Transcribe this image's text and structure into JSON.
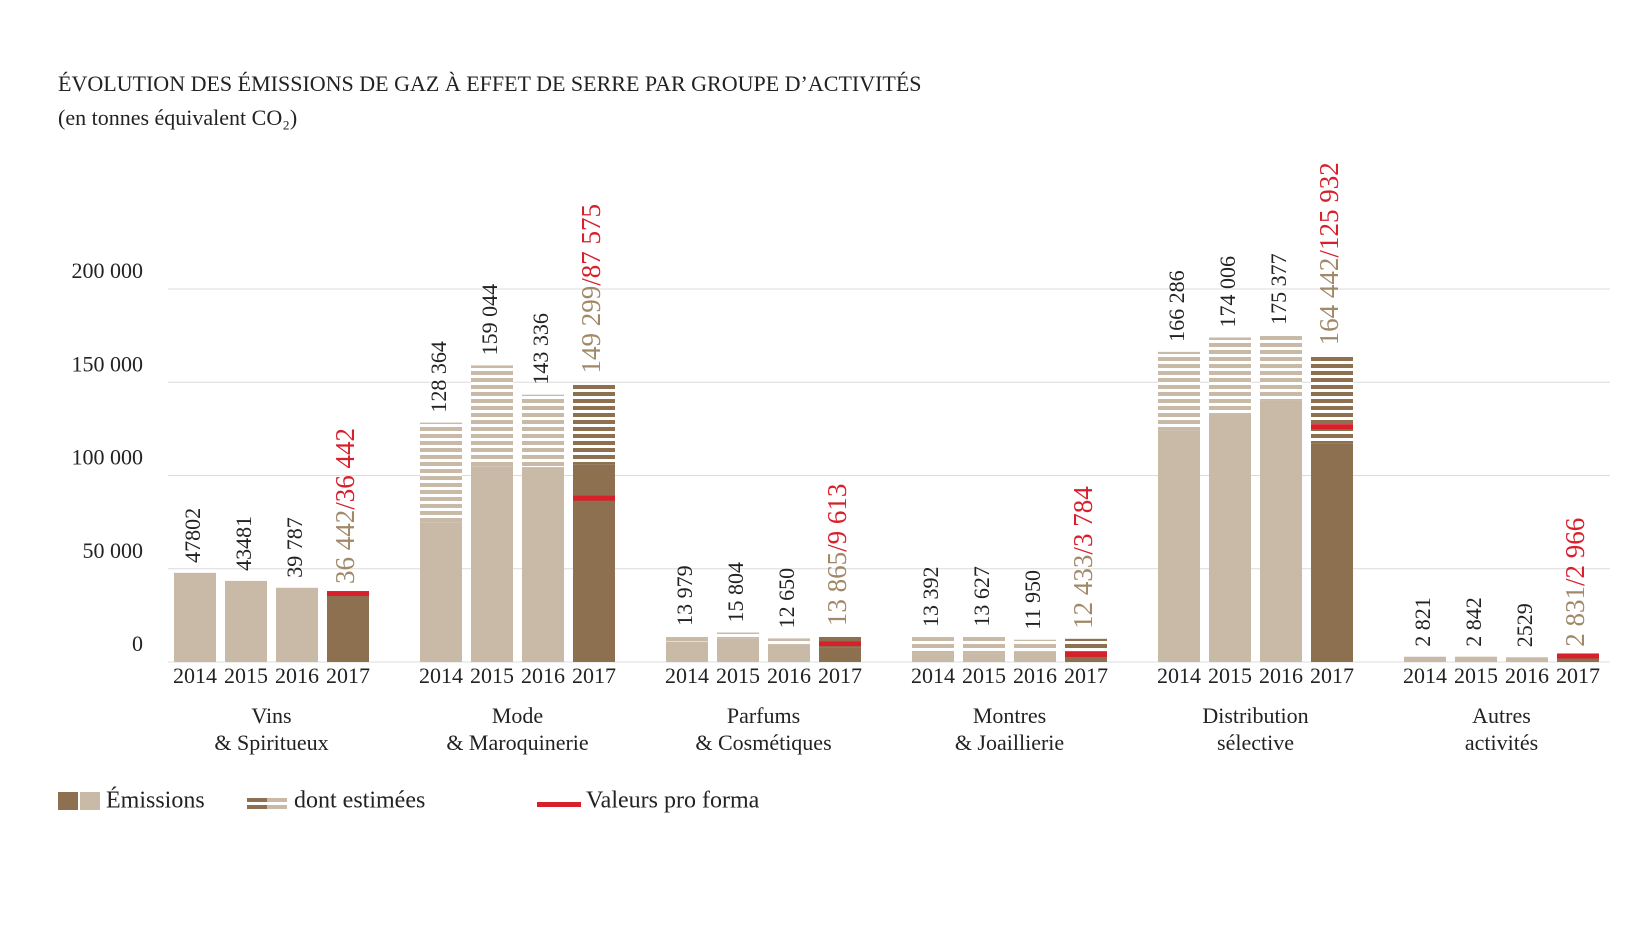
{
  "chart_data": {
    "type": "grouped_bar",
    "title": "ÉVOLUTION DES ÉMISSIONS DE GAZ À EFFET DE SERRE PAR GROUPE D’ACTIVITÉS",
    "subtitle": "(en tonnes équivalent CO₂)",
    "years": [
      "2014",
      "2015",
      "2016",
      "2017"
    ],
    "ylim": [
      0,
      200000
    ],
    "yticks": [
      0,
      {
        "value": 50000,
        "label": "50 000"
      },
      {
        "value": 100000,
        "label": "100 000"
      },
      {
        "value": 150000,
        "label": "150 000"
      },
      {
        "value": 200000,
        "label": "200 000"
      }
    ],
    "grid": true,
    "colors": {
      "past": "#c9b9a7",
      "current": "#8c7050",
      "current_label": "#a08868",
      "pro_forma": "#d7202b"
    },
    "label_separator": "/",
    "legend": [
      "Émissions",
      "dont estimées",
      "Valeurs pro forma"
    ],
    "groups": [
      {
        "label": [
          "Vins",
          "& Spiritueux"
        ],
        "values": [
          47802,
          43481,
          39787,
          36442
        ],
        "value_labels": [
          "47802",
          "43481",
          "39 787",
          "36 442"
        ],
        "measured": [
          47802,
          43481,
          39787,
          36442
        ],
        "pro_forma": 36442,
        "pro_forma_label": "36 442"
      },
      {
        "label": [
          "Mode",
          "& Maroquinerie"
        ],
        "values": [
          128364,
          159044,
          143336,
          149299
        ],
        "value_labels": [
          "128 364",
          "159 044",
          "143 336",
          "149 299"
        ],
        "measured": [
          75000,
          105000,
          104500,
          106000
        ],
        "pro_forma": 87575,
        "pro_forma_label": "87 575"
      },
      {
        "label": [
          "Parfums",
          "& Cosmétiques"
        ],
        "values": [
          13979,
          15804,
          12650,
          13865
        ],
        "value_labels": [
          "13 979",
          "15 804",
          "12 650",
          "13 865"
        ],
        "measured": [
          11000,
          12500,
          9500,
          8000
        ],
        "pro_forma": 9613,
        "pro_forma_label": "9 613"
      },
      {
        "label": [
          "Montres",
          "& Joaillierie"
        ],
        "values": [
          13392,
          13627,
          11950,
          12433
        ],
        "value_labels": [
          "13 392",
          "13 627",
          "11 950",
          "12 433"
        ],
        "measured": [
          4000,
          4500,
          5500,
          3000
        ],
        "pro_forma": 3784,
        "pro_forma_label": "3 784"
      },
      {
        "label": [
          "Distribution",
          "sélective"
        ],
        "values": [
          166286,
          174006,
          175377,
          164442
        ],
        "value_labels": [
          "166 286",
          "174 006",
          "175 377",
          "164 442"
        ],
        "measured": [
          124000,
          133000,
          140000,
          117000
        ],
        "pro_forma": 125932,
        "pro_forma_label": "125 932"
      },
      {
        "label": [
          "Autres",
          "activités"
        ],
        "values": [
          2821,
          2842,
          2529,
          2831
        ],
        "value_labels": [
          "2 821",
          "2 842",
          "2529",
          "2 831"
        ],
        "measured": [
          2821,
          2842,
          2529,
          2831
        ],
        "pro_forma": 2966,
        "pro_forma_label": "2 966"
      }
    ]
  }
}
